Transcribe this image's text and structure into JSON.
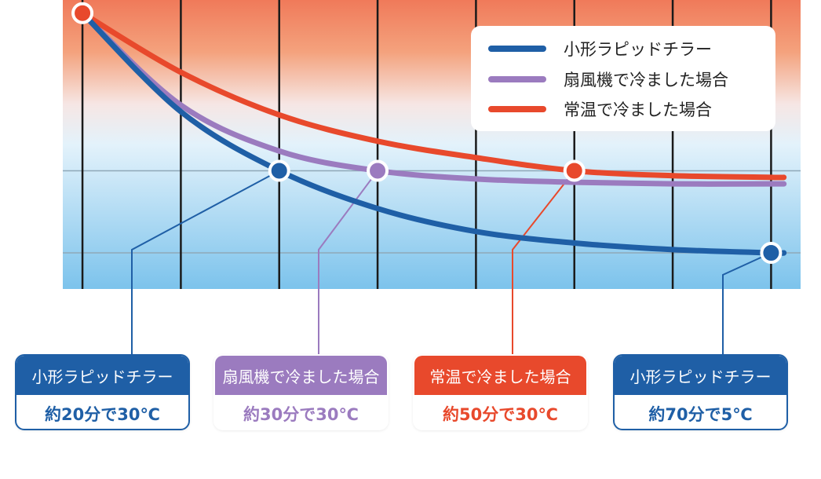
{
  "colors": {
    "chiller": "#1f5fa6",
    "fan": "#9b7bbf",
    "room": "#e8492c",
    "bg_top": "#f07a5a",
    "bg_bottom": "#7cc3ec"
  },
  "legend": {
    "items": [
      {
        "label": "小形ラピッドチラー",
        "color": "#1f5fa6"
      },
      {
        "label": "扇風機で冷ました場合",
        "color": "#9b7bbf"
      },
      {
        "label": "常温で冷ました場合",
        "color": "#e8492c"
      }
    ]
  },
  "cards": [
    {
      "title": "小形ラピッドチラー",
      "value": "約20分で30℃",
      "color": "#1f5fa6",
      "value_color": "#1f5fa6"
    },
    {
      "title": "扇風機で冷ました場合",
      "value": "約30分で30℃",
      "color": "#9b7bbf",
      "value_color": "#9b7bbf"
    },
    {
      "title": "常温で冷ました場合",
      "value": "約50分で30℃",
      "color": "#e8492c",
      "value_color": "#e8492c"
    },
    {
      "title": "小形ラピッドチラー",
      "value": "約70分で5℃",
      "color": "#1f5fa6",
      "value_color": "#1f5fa6"
    }
  ],
  "chart_data": {
    "type": "line",
    "title": "",
    "xlabel": "",
    "ylabel": "",
    "x_unit": "分",
    "y_unit": "℃",
    "xlim": [
      -2,
      73
    ],
    "ylim": [
      -6,
      82
    ],
    "grid_x": [
      0,
      10,
      20,
      30,
      40,
      50,
      60,
      70
    ],
    "grid_y": [
      5,
      30
    ],
    "legend_position": "top-right",
    "series": [
      {
        "name": "小形ラピッドチラー",
        "color": "#1f5fa6",
        "x": [
          0,
          10,
          20,
          30,
          40,
          50,
          60,
          70,
          71.3
        ],
        "y": [
          78,
          48,
          30,
          18.5,
          11.5,
          8,
          6,
          5,
          5
        ]
      },
      {
        "name": "扇風機で冷ました場合",
        "color": "#9b7bbf",
        "x": [
          0,
          10,
          20,
          30,
          40,
          50,
          60,
          70,
          71.3
        ],
        "y": [
          78,
          50,
          36,
          30,
          27.5,
          26.5,
          26,
          26,
          26
        ]
      },
      {
        "name": "常温で冷ました場合",
        "color": "#e8492c",
        "x": [
          0,
          10,
          20,
          30,
          40,
          50,
          60,
          70,
          71.3
        ],
        "y": [
          78,
          60,
          47,
          39,
          34,
          30,
          28.5,
          28,
          28
        ]
      }
    ],
    "markers": [
      {
        "series": 0,
        "x": 0,
        "y": 78,
        "color": "#e8492c"
      },
      {
        "series": 0,
        "x": 20,
        "y": 30,
        "color": "#1f5fa6"
      },
      {
        "series": 1,
        "x": 30,
        "y": 30,
        "color": "#9b7bbf"
      },
      {
        "series": 2,
        "x": 50,
        "y": 30,
        "color": "#e8492c"
      },
      {
        "series": 0,
        "x": 70,
        "y": 5,
        "color": "#1f5fa6"
      }
    ]
  }
}
